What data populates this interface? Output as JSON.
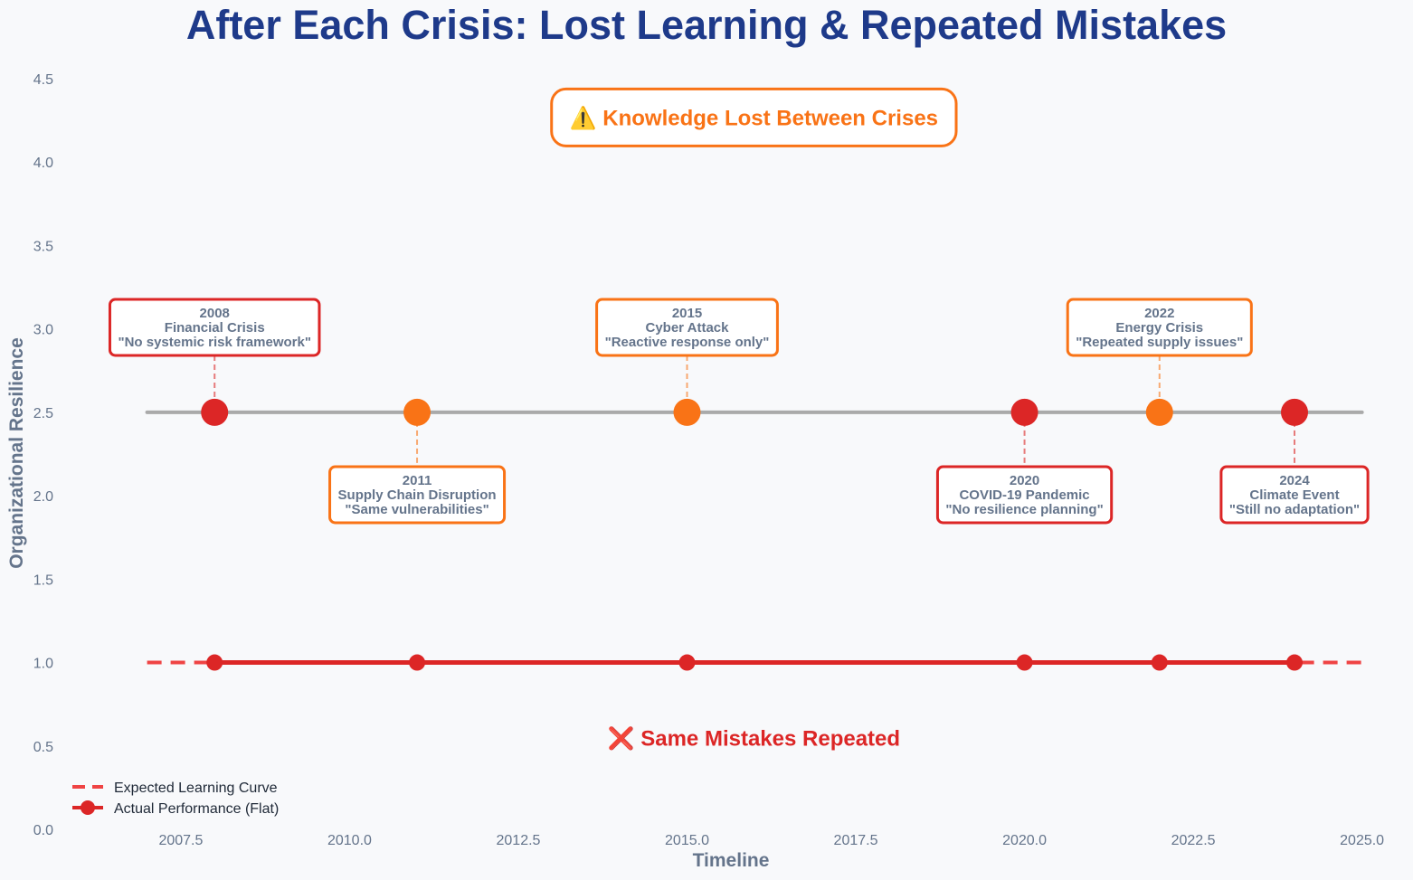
{
  "chart_data": {
    "type": "line",
    "title": "After Each Crisis: Lost Learning & Repeated Mistakes",
    "xlabel": "Timeline",
    "ylabel": "Organizational Resilience",
    "xlim": [
      2006.0,
      2025.3
    ],
    "ylim": [
      0.0,
      4.5
    ],
    "x_ticks": [
      "2007.5",
      "2010.0",
      "2012.5",
      "2015.0",
      "2017.5",
      "2020.0",
      "2022.5",
      "2025.0"
    ],
    "y_ticks": [
      "0.0",
      "0.5",
      "1.0",
      "1.5",
      "2.0",
      "2.5",
      "3.0",
      "3.5",
      "4.0",
      "4.5"
    ],
    "grid": false,
    "legend_position": "lower-left",
    "series": [
      {
        "name": "Expected Learning Curve",
        "style": "dashed",
        "color": "#ef4444",
        "x": [
          2007,
          2025
        ],
        "y": [
          1.0,
          1.0
        ]
      },
      {
        "name": "Actual Performance (Flat)",
        "style": "solid-markers",
        "color": "#dc2626",
        "x": [
          2008,
          2011,
          2015,
          2020,
          2022,
          2024
        ],
        "y": [
          1.0,
          1.0,
          1.0,
          1.0,
          1.0,
          1.0
        ]
      }
    ],
    "timeline": {
      "y": 2.5,
      "x_start": 2007,
      "x_end": 2025,
      "color": "#aaaaaa"
    },
    "crises": [
      {
        "year": "2008",
        "x": 2008,
        "name": "Financial Crisis",
        "quote": "\"No systemic risk framework\"",
        "color": "#dc2626",
        "label_side": "above"
      },
      {
        "year": "2011",
        "x": 2011,
        "name": "Supply Chain Disruption",
        "quote": "\"Same vulnerabilities\"",
        "color": "#f97316",
        "label_side": "below"
      },
      {
        "year": "2015",
        "x": 2015,
        "name": "Cyber Attack",
        "quote": "\"Reactive response only\"",
        "color": "#f97316",
        "label_side": "above"
      },
      {
        "year": "2020",
        "x": 2020,
        "name": "COVID-19 Pandemic",
        "quote": "\"No resilience planning\"",
        "color": "#dc2626",
        "label_side": "below"
      },
      {
        "year": "2022",
        "x": 2022,
        "name": "Energy Crisis",
        "quote": "\"Repeated supply issues\"",
        "color": "#f97316",
        "label_side": "above"
      },
      {
        "year": "2024",
        "x": 2024,
        "name": "Climate Event",
        "quote": "\"Still no adaptation\"",
        "color": "#dc2626",
        "label_side": "below"
      }
    ],
    "annotations": [
      {
        "text": "⚠️ Knowledge Lost Between Crises",
        "x": 2015.99,
        "y": 4.27,
        "color": "#f97316",
        "boxed": true
      },
      {
        "text": "❌ Same Mistakes Repeated",
        "x": 2015.99,
        "y": 0.55,
        "color": "#dc2626",
        "boxed": false
      }
    ]
  }
}
